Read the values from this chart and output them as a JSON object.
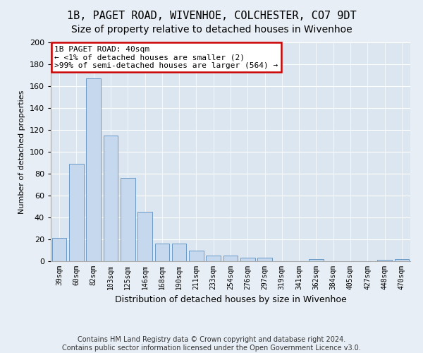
{
  "title1": "1B, PAGET ROAD, WIVENHOE, COLCHESTER, CO7 9DT",
  "title2": "Size of property relative to detached houses in Wivenhoe",
  "xlabel": "Distribution of detached houses by size in Wivenhoe",
  "ylabel": "Number of detached properties",
  "categories": [
    "39sqm",
    "60sqm",
    "82sqm",
    "103sqm",
    "125sqm",
    "146sqm",
    "168sqm",
    "190sqm",
    "211sqm",
    "233sqm",
    "254sqm",
    "276sqm",
    "297sqm",
    "319sqm",
    "341sqm",
    "362sqm",
    "384sqm",
    "405sqm",
    "427sqm",
    "448sqm",
    "470sqm"
  ],
  "values": [
    21,
    89,
    167,
    115,
    76,
    45,
    16,
    16,
    10,
    5,
    5,
    3,
    3,
    0,
    0,
    2,
    0,
    0,
    0,
    1,
    2
  ],
  "bar_color": "#c5d8ed",
  "bar_edgecolor": "#5a8fc0",
  "annotation_text": "1B PAGET ROAD: 40sqm\n← <1% of detached houses are smaller (2)\n>99% of semi-detached houses are larger (564) →",
  "annotation_box_edgecolor": "#cc0000",
  "annotation_box_facecolor": "#ffffff",
  "ylim": [
    0,
    200
  ],
  "yticks": [
    0,
    20,
    40,
    60,
    80,
    100,
    120,
    140,
    160,
    180,
    200
  ],
  "footnote1": "Contains HM Land Registry data © Crown copyright and database right 2024.",
  "footnote2": "Contains public sector information licensed under the Open Government Licence v3.0.",
  "bg_color": "#e8eef5",
  "plot_bg_color": "#dce6f0",
  "grid_color": "#ffffff",
  "title1_fontsize": 11,
  "title2_fontsize": 10,
  "ylabel_fontsize": 8,
  "xlabel_fontsize": 9,
  "tick_fontsize": 8,
  "xtick_fontsize": 7,
  "annot_fontsize": 8,
  "footnote_fontsize": 7
}
